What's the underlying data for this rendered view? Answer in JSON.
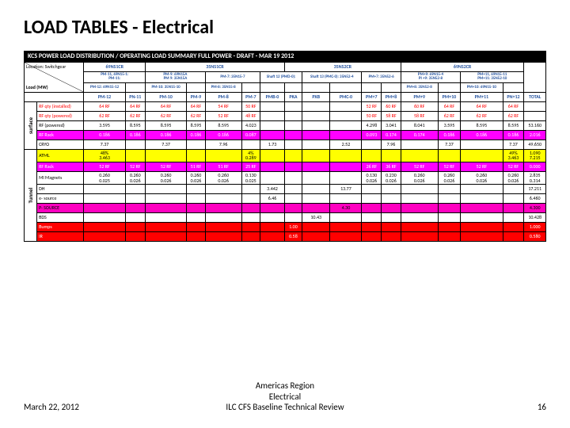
{
  "title": "LOAD TABLES - Electrical",
  "footer": {
    "date": "March 22, 2012",
    "line1": "Americas Region",
    "line2": "Electrical",
    "line3": "ILC CFS Baseline Technical Review",
    "page": "16"
  },
  "banner": "KCS POWER LOAD DISTRIBUTION / OPERATING LOAD SUMMARY FULL POWER - DRAFT - MAR 19 2012",
  "colors": {
    "pink": "#ff00ff",
    "red": "#ff0000",
    "yellow": "#ffff00",
    "blue": "#1f4e9c",
    "magenta": "#ff00c0"
  },
  "header": {
    "location": "Location: Switchgear",
    "load": "Load (MW)",
    "groups": [
      "69NS1CR",
      "35NS1CR",
      "35NS2CR",
      "69NS2CR",
      ""
    ],
    "sub1": [
      {
        "l1": "",
        "l2": "PM-11, 69N15-1:",
        "l3": "PM-11:"
      },
      {
        "l1": "PM-9: 69N15A",
        "l2": "PM 9: 35N15A",
        "l3": ""
      },
      {
        "l1": "",
        "l2": "PM-7: 35N15-7",
        "l3": ""
      },
      {
        "l1": "",
        "l2": "Shaft 12 (PMD-0):",
        "l3": ""
      },
      {
        "l1": "",
        "l2": "Shaft 13 (PMC-0): 35N52-4",
        "l3": ""
      },
      {
        "l1": "",
        "l2": "PM+7: 35N52-6",
        "l3": ""
      },
      {
        "l1": "",
        "l2": "PM+9: 69N15-4",
        "l3": "PI +9: 35N52-8"
      },
      {
        "l1": "",
        "l2": "PM+11, 69N15-11",
        "l3": "PM+11: 35N52-10"
      }
    ],
    "sub2": [
      {
        "t": "PM-12: 69N15-12"
      },
      {
        "t": ""
      },
      {
        "t": "PM-10: 35N15-10"
      },
      {
        "t": ""
      },
      {
        "t": "PM-8: 35N15-8"
      },
      {
        "t": ""
      },
      {
        "t": ""
      },
      {
        "t": ""
      },
      {
        "t": ""
      },
      {
        "t": ""
      },
      {
        "t": ""
      },
      {
        "t": ""
      },
      {
        "t": "PM+8: 35N52-8"
      },
      {
        "t": ""
      },
      {
        "t": "PM+10: 69N15-10"
      },
      {
        "t": ""
      },
      {
        "t": "PM+12: 69N15-12"
      }
    ],
    "cols": [
      "PM-12",
      "PN-11",
      "PM-10",
      "PM-9",
      "PM-8",
      "PM-7",
      "PMB-0",
      "PKA",
      "PXB",
      "PMC-0",
      "PM+7",
      "PM+8",
      "PM+9",
      "PM+10",
      "PM+11",
      "PN+12",
      "TOTAL"
    ]
  },
  "surface": {
    "label": "surface",
    "rows": [
      {
        "name": "RF qty (installed)",
        "cells": [
          "64 RF",
          "64 RF",
          "64 RF",
          "64 RF",
          "54 RF",
          "50 RF",
          "",
          "",
          "",
          "",
          "52 RF",
          "60 RF",
          "60 RF",
          "64 RF",
          "64 RF",
          "64 RF",
          ""
        ],
        "cls": "redtxt"
      },
      {
        "name": "RF qty (powered)",
        "cells": [
          "62 RF",
          "62 RF",
          "62 RF",
          "62 RF",
          "52 RF",
          "48 RF",
          "",
          "",
          "",
          "",
          "50 RF",
          "58 RF",
          "58 RF",
          "62 RF",
          "62 RF",
          "62 RF",
          ""
        ],
        "cls": "redtxt"
      },
      {
        "name": "RF (powered)",
        "cells": [
          "3.595",
          "8.595",
          "8.595",
          "8.595",
          "8.595",
          "4.023",
          "",
          "",
          "",
          "",
          "4.298",
          "3.041",
          "8.041",
          "3.595",
          "8.595",
          "8.595",
          "53.160"
        ],
        "cls": ""
      },
      {
        "name": "RF Rack",
        "cells": [
          "0.186",
          "0.186",
          "0.186",
          "0.186",
          "0.186",
          "0.087",
          "",
          "",
          "",
          "",
          "0.093",
          "0.174",
          "0.174",
          "0.186",
          "0.186",
          "0.186",
          "2.016"
        ],
        "cls": "pink"
      },
      {
        "name": "CRYO",
        "cells": [
          "7.37",
          "",
          "7.37",
          "",
          "7.96",
          "",
          "1.73",
          "",
          "",
          "2.52",
          "",
          "7.96",
          "",
          "7.37",
          "",
          "7.37",
          "49.650"
        ],
        "cls": ""
      }
    ]
  },
  "tunnel": {
    "label": "Tunnel",
    "rows": [
      {
        "name": "ATML",
        "cells": [
          "48%\n3.463",
          "",
          "",
          "",
          "",
          "4%\n0.289",
          "",
          "",
          "",
          "",
          "",
          "",
          "",
          "",
          "",
          "49%\n3.463",
          "1.090\n7.215"
        ],
        "cls": "yellow",
        "twoLine": true
      },
      {
        "name": "RF Rack",
        "cells": [
          "52 RF",
          "52 RF",
          "52 RF",
          "51 RF",
          "51 RF",
          "25 RF",
          "",
          "",
          "",
          "",
          "26 RF",
          "36 RF",
          "52 RF",
          "52 RF",
          "52 RF",
          "52 RF",
          "0.000"
        ],
        "cls": "pink"
      },
      {
        "name": "MI Magnets",
        "cells": [
          "0.260\n0.025",
          "0.260\n0.026",
          "0.260\n0.026",
          "0.260\n0.026",
          "0.260\n0.026",
          "0.130\n0.025",
          "",
          "",
          "",
          "",
          "0.130\n0.026",
          "0.230\n0.026",
          "0.260\n0.026",
          "0.260\n0.026",
          "0.260\n0.026",
          "0.260\n0.026",
          "2.835\n0.314"
        ],
        "cls": "",
        "twoLine": true
      },
      {
        "name": "DH",
        "cells": [
          "",
          "",
          "",
          "",
          "",
          "",
          "3.442",
          "",
          "",
          "13.77",
          "",
          "",
          "",
          "",
          "",
          "",
          "17.211"
        ],
        "cls": ""
      },
      {
        "name": "e- source",
        "cells": [
          "",
          "",
          "",
          "",
          "",
          "",
          "6.46",
          "",
          "",
          "",
          "",
          "",
          "",
          "",
          "",
          "",
          "6.460"
        ],
        "cls": ""
      },
      {
        "name": "P- SOURCE",
        "cells": [
          "",
          "",
          "",
          "",
          "",
          "",
          "",
          "",
          "",
          "4.30",
          "",
          "",
          "",
          "",
          "",
          "",
          "4.300"
        ],
        "cls": "magenta"
      },
      {
        "name": "BDS",
        "cells": [
          "",
          "",
          "",
          "",
          "",
          "",
          "",
          "",
          "10.43",
          "",
          "",
          "",
          "",
          "",
          "",
          "",
          "10.428"
        ],
        "cls": ""
      },
      {
        "name": "Bumps",
        "cells": [
          "",
          "",
          "",
          "",
          "",
          "",
          "",
          "1.00",
          "",
          "",
          "",
          "",
          "",
          "",
          "",
          "",
          "1.000"
        ],
        "cls": "red"
      },
      {
        "name": "IR",
        "cells": [
          "",
          "",
          "",
          "",
          "",
          "",
          "",
          "0.58",
          "",
          "",
          "",
          "",
          "",
          "",
          "",
          "",
          "0.580"
        ],
        "cls": "red"
      }
    ]
  }
}
